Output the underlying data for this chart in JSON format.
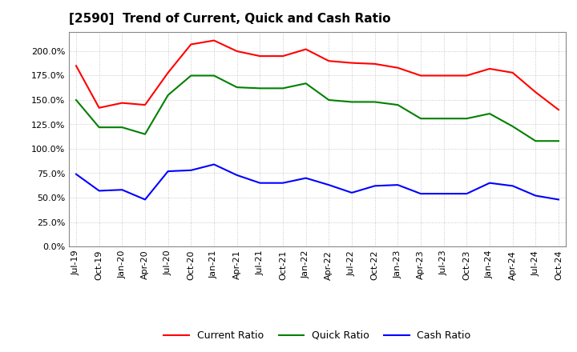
{
  "title": "[2590]  Trend of Current, Quick and Cash Ratio",
  "labels": [
    "Jul-19",
    "Oct-19",
    "Jan-20",
    "Apr-20",
    "Jul-20",
    "Oct-20",
    "Jan-21",
    "Apr-21",
    "Jul-21",
    "Oct-21",
    "Jan-22",
    "Apr-22",
    "Jul-22",
    "Oct-22",
    "Jan-23",
    "Apr-23",
    "Jul-23",
    "Oct-23",
    "Jan-24",
    "Apr-24",
    "Jul-24",
    "Oct-24"
  ],
  "current_ratio": [
    185,
    142,
    147,
    145,
    178,
    207,
    211,
    200,
    195,
    195,
    202,
    190,
    188,
    187,
    183,
    175,
    175,
    175,
    182,
    178,
    158,
    140
  ],
  "quick_ratio": [
    150,
    122,
    122,
    115,
    155,
    175,
    175,
    163,
    162,
    162,
    167,
    150,
    148,
    148,
    145,
    131,
    131,
    131,
    136,
    123,
    108,
    108
  ],
  "cash_ratio": [
    74,
    57,
    58,
    48,
    77,
    78,
    84,
    73,
    65,
    65,
    70,
    63,
    55,
    62,
    63,
    54,
    54,
    54,
    65,
    62,
    52,
    48
  ],
  "current_color": "#FF0000",
  "quick_color": "#008000",
  "cash_color": "#0000FF",
  "ylim": [
    0,
    220
  ],
  "yticks": [
    0,
    25,
    50,
    75,
    100,
    125,
    150,
    175,
    200
  ],
  "background_color": "#ffffff",
  "grid_color": "#bbbbbb"
}
